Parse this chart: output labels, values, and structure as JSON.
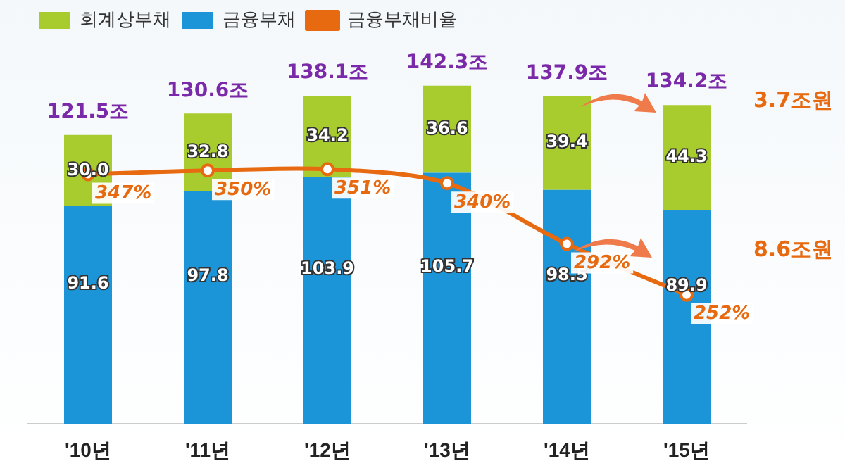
{
  "chart_data": {
    "type": "bar",
    "stacked": true,
    "categories": [
      "'10년",
      "'11년",
      "'12년",
      "'13년",
      "'14년",
      "'15년"
    ],
    "series": [
      {
        "name": "금융부채",
        "color": "#1c95d8",
        "values": [
          91.6,
          97.8,
          103.9,
          105.7,
          98.5,
          89.9
        ],
        "value_labels": [
          "91.6",
          "97.8",
          "103.9",
          "105.7",
          "98.5",
          "89.9"
        ]
      },
      {
        "name": "회계상부채",
        "color": "#a8cc2e",
        "values": [
          30.0,
          32.8,
          34.2,
          36.6,
          39.4,
          44.3
        ],
        "value_labels": [
          "30.0",
          "32.8",
          "34.2",
          "36.6",
          "39.4",
          "44.3"
        ]
      },
      {
        "name": "금융부채비율",
        "type": "line",
        "axis": "y2",
        "color": "#e86a10",
        "values": [
          347,
          350,
          351,
          340,
          292,
          252
        ],
        "value_labels": [
          "347%",
          "350%",
          "351%",
          "340%",
          "292%",
          "252%"
        ],
        "marker": "circle"
      }
    ],
    "totals": [
      "121.5조",
      "130.6조",
      "138.1조",
      "142.3조",
      "137.9조",
      "134.2조"
    ],
    "annotations": [
      "3.7조원",
      "8.6조원"
    ],
    "tick_labels": "x",
    "grid": false,
    "legend": "top left"
  }
}
